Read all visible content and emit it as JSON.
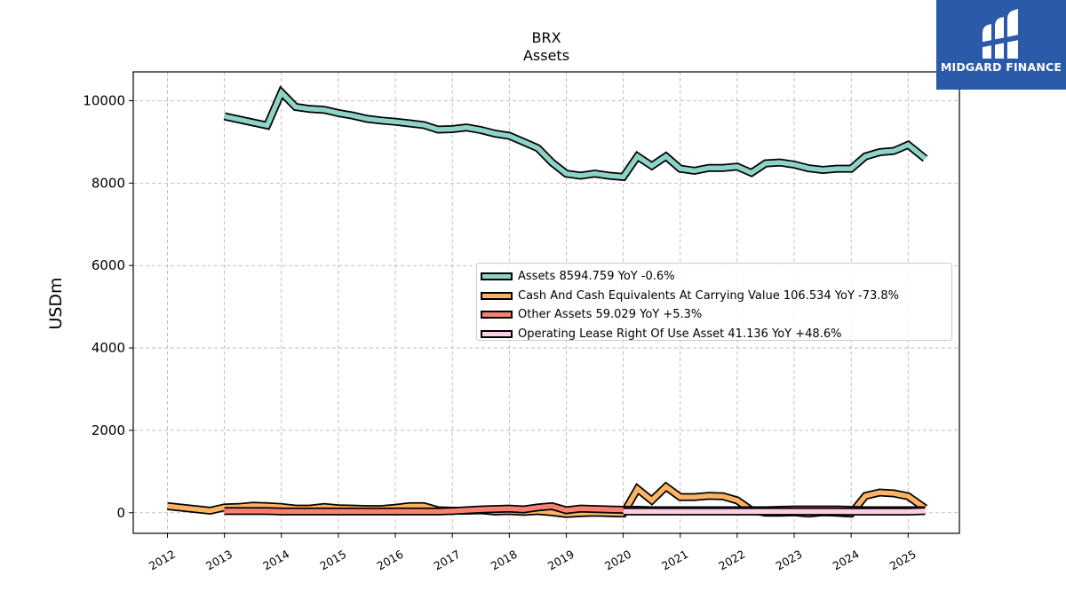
{
  "chart_data": {
    "type": "line",
    "title": "BRX",
    "subtitle": "Assets",
    "ylabel": "USDm",
    "ylim": [
      -500,
      10700
    ],
    "yticks": [
      0,
      2000,
      4000,
      6000,
      8000,
      10000
    ],
    "xlim": [
      2011.4,
      2025.9
    ],
    "xticks": [
      "2012",
      "2013",
      "2014",
      "2015",
      "2016",
      "2017",
      "2018",
      "2019",
      "2020",
      "2021",
      "2022",
      "2023",
      "2024",
      "2025"
    ],
    "grid": true,
    "legend_position": "center-right",
    "series": [
      {
        "name": "Assets",
        "legend": "Assets  8594.759 YoY -0.6%",
        "color": "#8dd3c7",
        "x": [
          2013.0,
          2013.75,
          2014.0,
          2014.25,
          2014.5,
          2014.75,
          2015.0,
          2015.25,
          2015.5,
          2015.75,
          2016.0,
          2016.25,
          2016.5,
          2016.75,
          2017.0,
          2017.25,
          2017.5,
          2017.75,
          2018.0,
          2018.25,
          2018.5,
          2018.75,
          2019.0,
          2019.25,
          2019.5,
          2019.75,
          2020.0,
          2020.25,
          2020.5,
          2020.75,
          2021.0,
          2021.25,
          2021.5,
          2021.75,
          2022.0,
          2022.25,
          2022.5,
          2022.75,
          2023.0,
          2023.25,
          2023.5,
          2023.75,
          2024.0,
          2024.25,
          2024.5,
          2024.75,
          2025.0,
          2025.3
        ],
        "values": [
          9620,
          9400,
          10200,
          9850,
          9800,
          9780,
          9700,
          9640,
          9560,
          9520,
          9490,
          9450,
          9410,
          9300,
          9310,
          9350,
          9290,
          9200,
          9150,
          9000,
          8850,
          8500,
          8230,
          8180,
          8230,
          8180,
          8150,
          8650,
          8420,
          8650,
          8350,
          8300,
          8370,
          8370,
          8400,
          8250,
          8480,
          8500,
          8450,
          8360,
          8320,
          8350,
          8350,
          8650,
          8750,
          8780,
          8930,
          8595
        ]
      },
      {
        "name": "Cash And Cash Equivalents At Carrying Value",
        "legend": "Cash And Cash Equivalents At Carrying Value  106.534 YoY -73.8%",
        "color": "#fdb462",
        "x": [
          2012.0,
          2012.75,
          2013.0,
          2013.25,
          2013.5,
          2013.75,
          2014.0,
          2014.25,
          2014.5,
          2014.75,
          2015.0,
          2015.25,
          2015.5,
          2015.75,
          2016.0,
          2016.25,
          2016.5,
          2016.75,
          2017.0,
          2017.25,
          2017.5,
          2017.75,
          2018.0,
          2018.25,
          2018.5,
          2018.75,
          2019.0,
          2019.25,
          2019.5,
          2019.75,
          2020.0,
          2020.25,
          2020.5,
          2020.75,
          2021.0,
          2021.25,
          2021.5,
          2021.75,
          2022.0,
          2022.25,
          2022.5,
          2022.75,
          2023.0,
          2023.25,
          2023.5,
          2023.75,
          2024.0,
          2024.25,
          2024.5,
          2024.75,
          2025.0,
          2025.3
        ],
        "values": [
          160,
          50,
          130,
          140,
          170,
          160,
          140,
          100,
          100,
          140,
          110,
          100,
          90,
          90,
          120,
          160,
          160,
          60,
          50,
          50,
          60,
          30,
          40,
          20,
          40,
          10,
          -30,
          -10,
          0,
          -10,
          -20,
          580,
          300,
          630,
          380,
          380,
          410,
          400,
          300,
          60,
          0,
          0,
          10,
          -20,
          10,
          0,
          -20,
          410,
          490,
          470,
          400,
          107
        ]
      },
      {
        "name": "Other Assets",
        "legend": "Other Assets  59.029 YoY +5.3%",
        "color": "#fb8072",
        "x": [
          2013.0,
          2013.75,
          2014.0,
          2014.25,
          2014.5,
          2014.75,
          2015.0,
          2015.25,
          2015.5,
          2015.75,
          2016.0,
          2016.25,
          2016.5,
          2016.75,
          2017.0,
          2017.25,
          2017.5,
          2017.75,
          2018.0,
          2018.25,
          2018.5,
          2018.75,
          2019.0,
          2019.25,
          2019.5,
          2019.75,
          2020.0,
          2020.25,
          2020.5,
          2020.75,
          2021.0,
          2021.25,
          2021.5,
          2021.75,
          2022.0,
          2022.25,
          2022.5,
          2022.75,
          2023.0,
          2023.25,
          2023.5,
          2023.75,
          2024.0,
          2024.25,
          2024.5,
          2024.75,
          2025.0,
          2025.3
        ],
        "values": [
          40,
          40,
          30,
          30,
          30,
          30,
          30,
          30,
          30,
          30,
          30,
          30,
          30,
          30,
          40,
          60,
          80,
          90,
          100,
          80,
          130,
          160,
          60,
          100,
          90,
          80,
          70,
          70,
          60,
          60,
          60,
          60,
          60,
          60,
          60,
          60,
          60,
          70,
          80,
          80,
          80,
          80,
          70,
          60,
          60,
          60,
          60,
          59
        ]
      },
      {
        "name": "Operating Lease Right Of Use Asset",
        "legend": "Operating Lease Right Of Use Asset  41.136 YoY +48.6%",
        "color": "#fccde5",
        "x": [
          2020.0,
          2020.25,
          2020.5,
          2020.75,
          2021.0,
          2021.25,
          2021.5,
          2021.75,
          2022.0,
          2022.25,
          2022.5,
          2022.75,
          2023.0,
          2023.25,
          2023.5,
          2023.75,
          2024.0,
          2024.25,
          2024.5,
          2024.75,
          2025.0,
          2025.3
        ],
        "values": [
          30,
          30,
          30,
          30,
          30,
          30,
          30,
          30,
          30,
          30,
          30,
          30,
          30,
          30,
          30,
          30,
          28,
          28,
          28,
          28,
          28,
          41
        ]
      }
    ]
  },
  "logo": {
    "text": "MIDGARD FINANCE",
    "background": "#2b5aa8"
  }
}
